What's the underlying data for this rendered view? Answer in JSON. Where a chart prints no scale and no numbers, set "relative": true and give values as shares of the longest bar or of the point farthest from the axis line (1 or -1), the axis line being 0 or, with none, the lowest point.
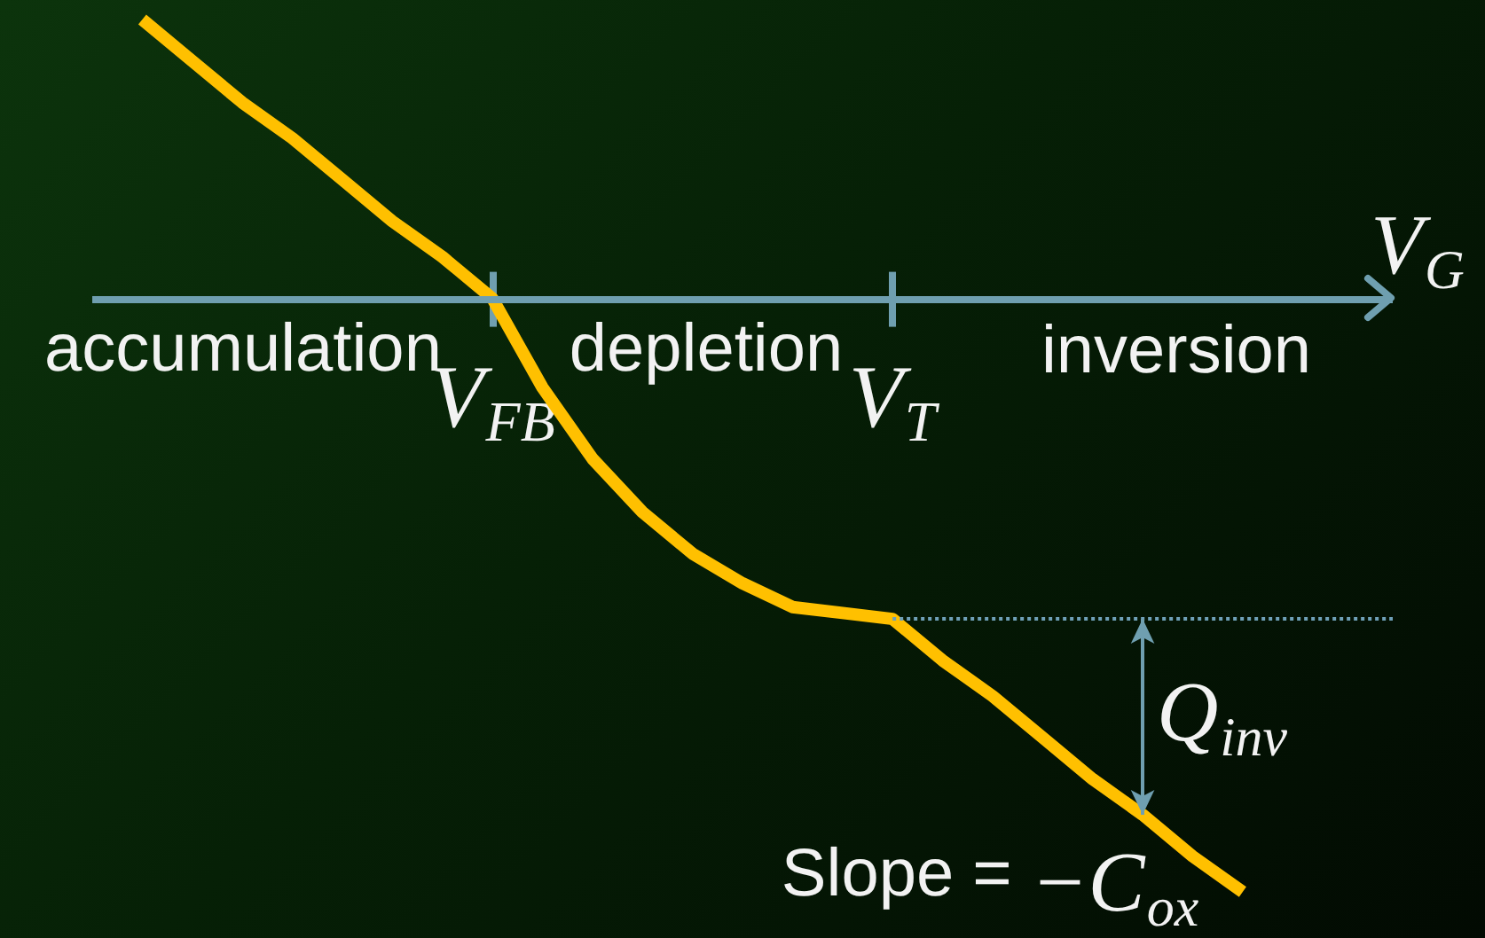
{
  "chart_data": {
    "type": "line",
    "relative": true,
    "xlabel": "V$_{G}$",
    "marker": "none",
    "categories": [
      null,
      null,
      null,
      null,
      null,
      null,
      null,
      null,
      "V$_{FB}$",
      null,
      null,
      null,
      null,
      null,
      null,
      null,
      "V$_{T}$",
      null,
      null,
      null,
      null,
      null,
      null,
      null,
      null,
      null,
      null
    ],
    "series": [
      {
        "color": "#ffc000",
        "values": [
          null,
          0.47,
          0.4,
          0.33,
          0.27,
          0.2,
          0.13,
          0.07,
          0,
          -0.15,
          -0.27,
          -0.36,
          -0.43,
          -0.48,
          -0.52,
          -0.53,
          -0.54,
          -0.61,
          -0.67,
          -0.74,
          -0.81,
          -0.87,
          -0.94,
          -1,
          null,
          null,
          null
        ]
      },
      {
        "color": "#6fa0b8",
        "line_style": "dotted",
        "values": [
          null,
          null,
          null,
          null,
          null,
          null,
          null,
          null,
          null,
          null,
          null,
          null,
          null,
          null,
          null,
          null,
          -0.54,
          -0.54,
          -0.54,
          -0.54,
          -0.54,
          -0.54,
          -0.54,
          -0.54,
          -0.54,
          -0.54,
          -0.54
        ]
      }
    ],
    "ref_lines": [
      {
        "axis": "y",
        "value": 0,
        "color": "#6f9fb0"
      }
    ],
    "annotations": [
      "accumulation",
      "depletion",
      "inversion",
      "Q$_{inv}$",
      "Slope = −C$_{ox}$"
    ]
  }
}
